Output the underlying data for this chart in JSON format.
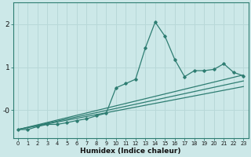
{
  "title": "",
  "xlabel": "Humidex (Indice chaleur)",
  "bg_color": "#cce8e8",
  "grid_color": "#b8d8d8",
  "line_color": "#2e7d72",
  "x_ticks": [
    0,
    1,
    2,
    3,
    4,
    5,
    6,
    7,
    8,
    9,
    10,
    11,
    12,
    13,
    14,
    15,
    16,
    17,
    18,
    19,
    20,
    21,
    22,
    23
  ],
  "ylim": [
    -0.65,
    2.5
  ],
  "xlim": [
    -0.5,
    23.5
  ],
  "curve1_x": [
    0,
    1,
    2,
    3,
    4,
    5,
    6,
    7,
    8,
    9,
    10,
    11,
    12,
    13,
    14,
    15,
    16,
    17,
    18,
    19,
    20,
    21,
    22,
    23
  ],
  "curve1_y": [
    -0.45,
    -0.45,
    -0.38,
    -0.33,
    -0.33,
    -0.29,
    -0.24,
    -0.2,
    -0.13,
    -0.07,
    0.52,
    0.62,
    0.72,
    1.45,
    2.05,
    1.72,
    1.18,
    0.78,
    0.92,
    0.92,
    0.95,
    1.08,
    0.88,
    0.8
  ],
  "line1_x0": -0.45,
  "line1_x23": 0.82,
  "line2_x0": -0.45,
  "line2_x23": 0.68,
  "line3_x0": -0.45,
  "line3_x23": 0.55
}
